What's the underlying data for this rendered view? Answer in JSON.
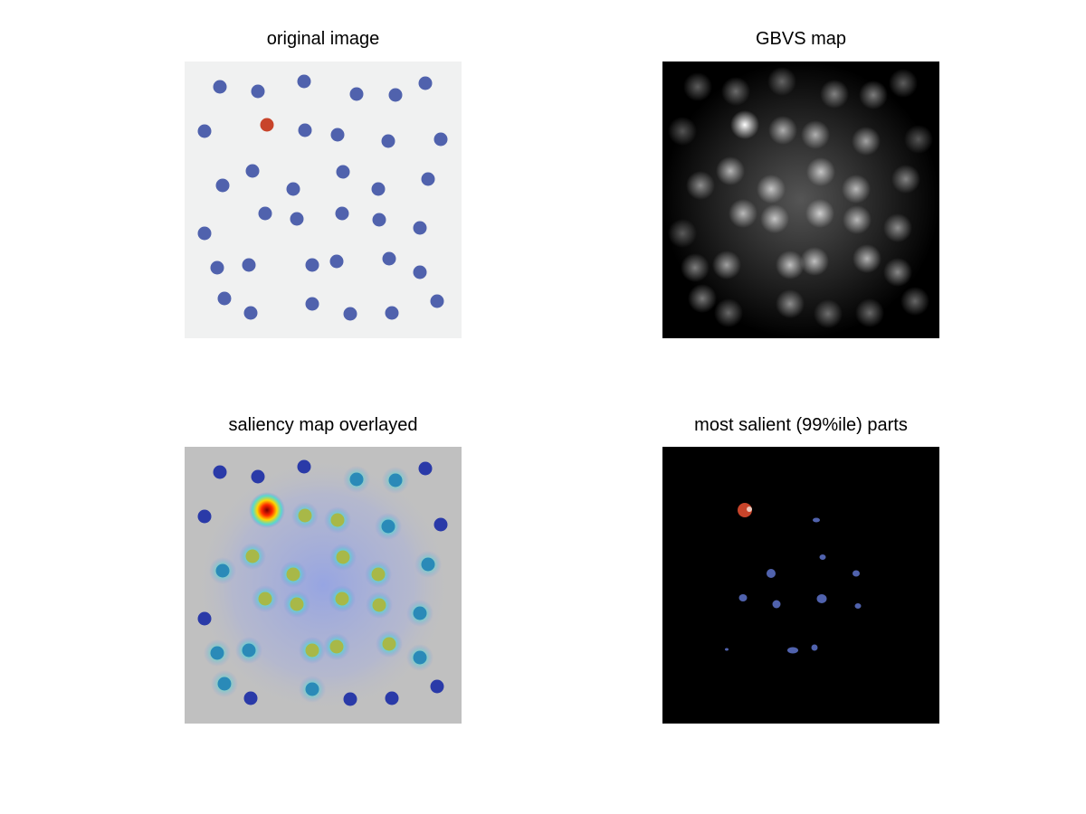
{
  "panels": {
    "original": {
      "title": "original image"
    },
    "gbvs": {
      "title": "GBVS map"
    },
    "overlay": {
      "title": "saliency map overlayed"
    },
    "salient": {
      "title": "most salient (99%ile) parts"
    }
  },
  "colors": {
    "blue_dot": "#5062ad",
    "red_dot": "#c8442a",
    "dark_blue_dot": "#2a3aa8",
    "original_bg": "#f0f1f1",
    "overlay_bg": "#c0c0c0"
  }
}
